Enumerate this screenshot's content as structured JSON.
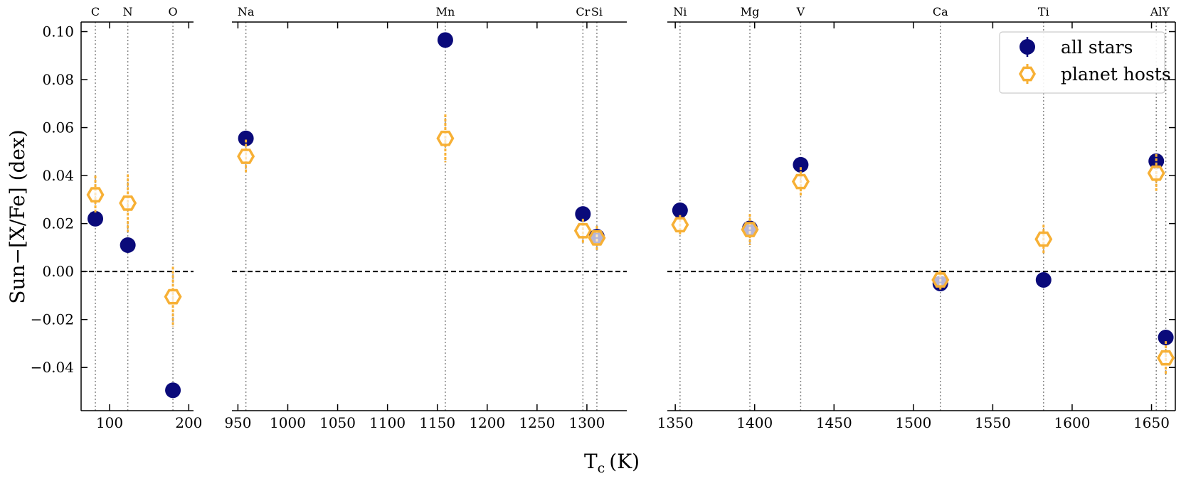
{
  "chart_data": {
    "type": "scatter",
    "xlabel": "T$_c$ (K)",
    "xlabel_main": "T",
    "xlabel_sub": "c",
    "xlabel_unit": "(K)",
    "ylabel": "Sun−[X/Fe] (dex)",
    "ylim": [
      -0.058,
      0.104
    ],
    "yticks": [
      0.1,
      0.08,
      0.06,
      0.04,
      0.02,
      0.0,
      -0.02,
      -0.04
    ],
    "ytick_labels": [
      "0.10",
      "0.08",
      "0.06",
      "0.04",
      "0.02",
      "0.00",
      "−0.02",
      "−0.04"
    ],
    "reference_line": 0.0,
    "legend_position": "top-right",
    "legend": [
      {
        "name": "all stars",
        "color": "#0a0a7a",
        "marker": "filled-circle"
      },
      {
        "name": "planet hosts",
        "color": "#f7b035",
        "marker": "open-hexagon"
      }
    ],
    "panels": [
      {
        "xlim": [
          64,
          206
        ],
        "xticks": [
          100,
          200
        ],
        "xtick_labels": [
          "100",
          "200"
        ],
        "elements": [
          {
            "name": "C",
            "tc": 82,
            "all_stars": 0.022,
            "all_err": 0.003,
            "planet_hosts": 0.032,
            "hosts_err": 0.008
          },
          {
            "name": "N",
            "tc": 123,
            "all_stars": 0.011,
            "all_err": 0.003,
            "planet_hosts": 0.0285,
            "hosts_err": 0.012
          },
          {
            "name": "O",
            "tc": 180,
            "all_stars": -0.0495,
            "all_err": 0.003,
            "planet_hosts": -0.0105,
            "hosts_err": 0.0125
          }
        ]
      },
      {
        "xlim": [
          944,
          1340
        ],
        "xticks": [
          950,
          1000,
          1050,
          1100,
          1150,
          1200,
          1250,
          1300
        ],
        "xtick_labels": [
          "950",
          "1000",
          "1050",
          "1100",
          "1150",
          "1200",
          "1250",
          "1300"
        ],
        "elements": [
          {
            "name": "Na",
            "tc": 958,
            "all_stars": 0.0555,
            "all_err": 0.003,
            "planet_hosts": 0.048,
            "hosts_err": 0.007
          },
          {
            "name": "Mn",
            "tc": 1158,
            "all_stars": 0.0965,
            "all_err": 0.003,
            "planet_hosts": 0.0555,
            "hosts_err": 0.01
          },
          {
            "name": "Cr",
            "tc": 1296,
            "all_stars": 0.024,
            "all_err": 0.003,
            "planet_hosts": 0.017,
            "hosts_err": 0.005
          },
          {
            "name": "Si",
            "tc": 1310,
            "all_stars": 0.0145,
            "all_err": 0.003,
            "planet_hosts": 0.014,
            "hosts_err": 0.005
          }
        ]
      },
      {
        "xlim": [
          1345,
          1665
        ],
        "xticks": [
          1350,
          1400,
          1450,
          1500,
          1550,
          1600,
          1650
        ],
        "xtick_labels": [
          "1350",
          "1400",
          "1450",
          "1500",
          "1550",
          "1600",
          "1650"
        ],
        "elements": [
          {
            "name": "Ni",
            "tc": 1353,
            "all_stars": 0.0255,
            "all_err": 0.003,
            "planet_hosts": 0.0195,
            "hosts_err": 0.004
          },
          {
            "name": "Mg",
            "tc": 1397,
            "all_stars": 0.018,
            "all_err": 0.003,
            "planet_hosts": 0.0175,
            "hosts_err": 0.0065
          },
          {
            "name": "V",
            "tc": 1429,
            "all_stars": 0.0445,
            "all_err": 0.003,
            "planet_hosts": 0.0375,
            "hosts_err": 0.006
          },
          {
            "name": "Ca",
            "tc": 1517,
            "all_stars": -0.005,
            "all_err": 0.003,
            "planet_hosts": -0.0035,
            "hosts_err": 0.004
          },
          {
            "name": "Ti",
            "tc": 1582,
            "all_stars": -0.0035,
            "all_err": 0.003,
            "planet_hosts": 0.0135,
            "hosts_err": 0.006
          },
          {
            "name": "Al",
            "tc": 1653,
            "all_stars": 0.046,
            "all_err": 0.003,
            "planet_hosts": 0.041,
            "hosts_err": 0.008
          },
          {
            "name": "Y",
            "tc": 1659,
            "all_stars": -0.0275,
            "all_err": 0.003,
            "planet_hosts": -0.036,
            "hosts_err": 0.007
          }
        ]
      }
    ]
  }
}
